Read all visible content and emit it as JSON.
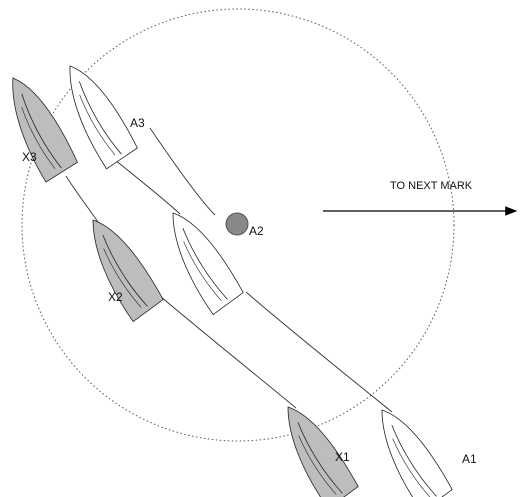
{
  "boats": [
    {
      "label": "A1"
    },
    {
      "label": "A2"
    },
    {
      "label": "A3"
    },
    {
      "label": "X1"
    },
    {
      "label": "X2"
    },
    {
      "label": "X3"
    }
  ],
  "arrow_label": "TO NEXT MARK"
}
